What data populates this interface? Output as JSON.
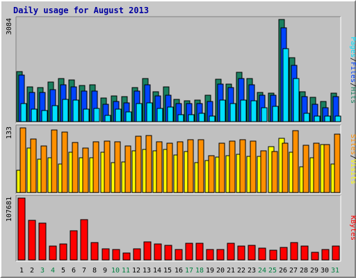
{
  "chart_data": {
    "title": "Daily usage for August 2013",
    "type": "bar",
    "categories": [
      "1",
      "2",
      "3",
      "4",
      "5",
      "6",
      "7",
      "8",
      "9",
      "10",
      "11",
      "12",
      "13",
      "14",
      "15",
      "16",
      "17",
      "18",
      "19",
      "20",
      "21",
      "22",
      "23",
      "24",
      "25",
      "26",
      "27",
      "28",
      "29",
      "30",
      "31"
    ],
    "weekend_days": [
      "3",
      "4",
      "10",
      "11",
      "17",
      "18",
      "24",
      "25",
      "31"
    ],
    "colors": {
      "hits": "#1a8060",
      "files": "#0044ff",
      "pages": "#00e0ff",
      "visits": "#ffff00",
      "sites": "#ff9000",
      "kbytes": "#ff0000",
      "weekday_label": "#000000",
      "weekend_label": "#008040",
      "plot_bg": "#c0c0c0",
      "title": "#0000a0"
    },
    "panels": [
      {
        "id": "hits-panel",
        "max_label": "3084",
        "ylim": [
          0,
          3084
        ],
        "legend": [
          {
            "text": "Pages",
            "color": "#00e0ff"
          },
          {
            "text": "/",
            "color": "#000000"
          },
          {
            "text": "Files",
            "color": "#0044ff"
          },
          {
            "text": "/",
            "color": "#000000"
          },
          {
            "text": "Hits",
            "color": "#1a8060"
          }
        ],
        "series": [
          {
            "name": "Hits",
            "color": "#1a8060",
            "values": [
              1520,
              1055,
              1030,
              1195,
              1295,
              1250,
              1085,
              1115,
              715,
              770,
              765,
              1035,
              1310,
              900,
              1050,
              675,
              635,
              640,
              790,
              1270,
              1130,
              1490,
              1300,
              875,
              865,
              3084,
              1940,
              905,
              740,
              600,
              865
            ]
          },
          {
            "name": "Files",
            "color": "#0044ff",
            "values": [
              1410,
              885,
              880,
              975,
              1110,
              1040,
              920,
              920,
              520,
              605,
              560,
              930,
              1110,
              775,
              800,
              555,
              550,
              555,
              600,
              1125,
              1025,
              1295,
              1110,
              795,
              790,
              2840,
              1695,
              760,
              520,
              425,
              745
            ]
          },
          {
            "name": "Pages",
            "color": "#00e0ff",
            "values": [
              545,
              380,
              340,
              480,
              665,
              640,
              385,
              400,
              185,
              380,
              290,
              545,
              560,
              390,
              450,
              220,
              220,
              260,
              175,
              645,
              550,
              645,
              620,
              415,
              465,
              2210,
              1310,
              245,
              175,
              165,
              165
            ]
          }
        ]
      },
      {
        "id": "visits-panel",
        "max_label": "133",
        "ylim": [
          0,
          133
        ],
        "legend": [
          {
            "text": "Sites",
            "color": "#ff9000"
          },
          {
            "text": "/",
            "color": "#000000"
          },
          {
            "text": "Visits",
            "color": "#ffff00"
          }
        ],
        "series": [
          {
            "name": "Visits",
            "color": "#ffff00",
            "values": [
              46,
              91,
              69,
              72,
              59,
              83,
              72,
              72,
              83,
              62,
              63,
              86,
              88,
              86,
              88,
              77,
              84,
              62,
              66,
              73,
              76,
              79,
              75,
              75,
              95,
              112,
              83,
              53,
              71,
              98,
              59
            ]
          },
          {
            "name": "Sites",
            "color": "#ff9000",
            "values": [
              133,
              110,
              96,
              129,
              124,
              103,
              91,
              104,
              106,
              104,
              96,
              116,
              117,
              104,
              101,
              104,
              109,
              109,
              76,
              101,
              106,
              109,
              106,
              86,
              85,
              101,
              127,
              97,
              101,
              98,
              120
            ]
          }
        ]
      },
      {
        "id": "kbytes-panel",
        "max_label": "107681",
        "ylim": [
          0,
          107681
        ],
        "legend": [
          {
            "text": "KBytes",
            "color": "#ff0000"
          }
        ],
        "series": [
          {
            "name": "KBytes",
            "color": "#ff0000",
            "values": [
              107681,
              69380,
              64380,
              23760,
              27390,
              50420,
              70030,
              29770,
              18950,
              18300,
              11950,
              19270,
              31700,
              27920,
              25180,
              18530,
              28670,
              28670,
              17560,
              18700,
              28660,
              24640,
              25950,
              20840,
              17270,
              21260,
              29900,
              24640,
              13260,
              17830,
              24640
            ]
          }
        ]
      }
    ]
  }
}
